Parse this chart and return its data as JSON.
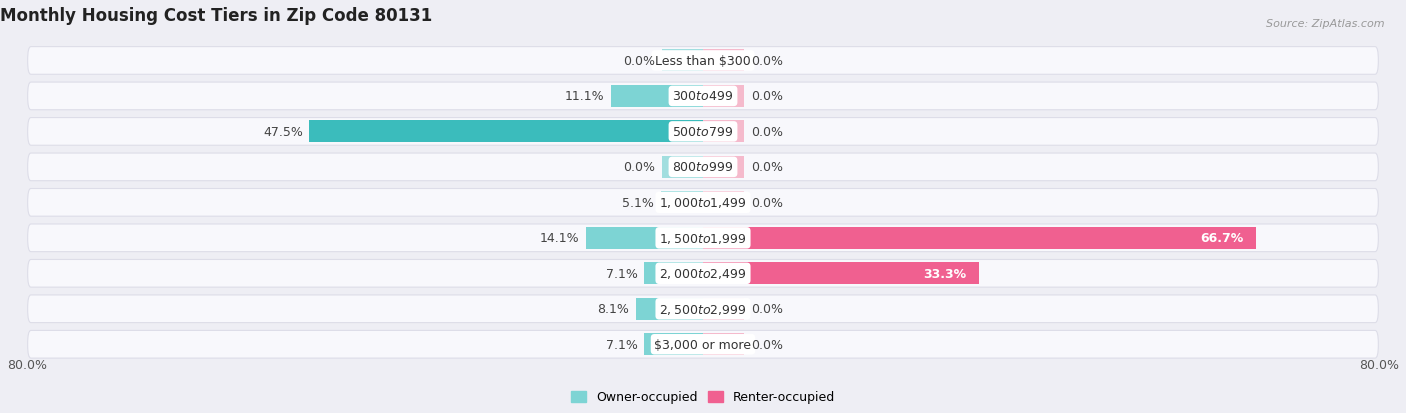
{
  "title": "Monthly Housing Cost Tiers in Zip Code 80131",
  "source": "Source: ZipAtlas.com",
  "categories": [
    "Less than $300",
    "$300 to $499",
    "$500 to $799",
    "$800 to $999",
    "$1,000 to $1,499",
    "$1,500 to $1,999",
    "$2,000 to $2,499",
    "$2,500 to $2,999",
    "$3,000 or more"
  ],
  "owner_values": [
    0.0,
    11.1,
    47.5,
    0.0,
    5.1,
    14.1,
    7.1,
    8.1,
    7.1
  ],
  "renter_values": [
    0.0,
    0.0,
    0.0,
    0.0,
    0.0,
    66.7,
    33.3,
    0.0,
    0.0
  ],
  "owner_color_light": "#7dd4d4",
  "owner_color_dark": "#3bbcbc",
  "renter_color_light": "#f4a0b8",
  "renter_color_dark": "#f06090",
  "bg_color": "#eeeef4",
  "row_bg": "#f8f8fc",
  "row_border": "#dddde8",
  "stub_size": 5.0,
  "max_val": 80.0,
  "bar_height": 0.62,
  "title_fontsize": 12,
  "value_fontsize": 9,
  "cat_fontsize": 9,
  "legend_fontsize": 9
}
